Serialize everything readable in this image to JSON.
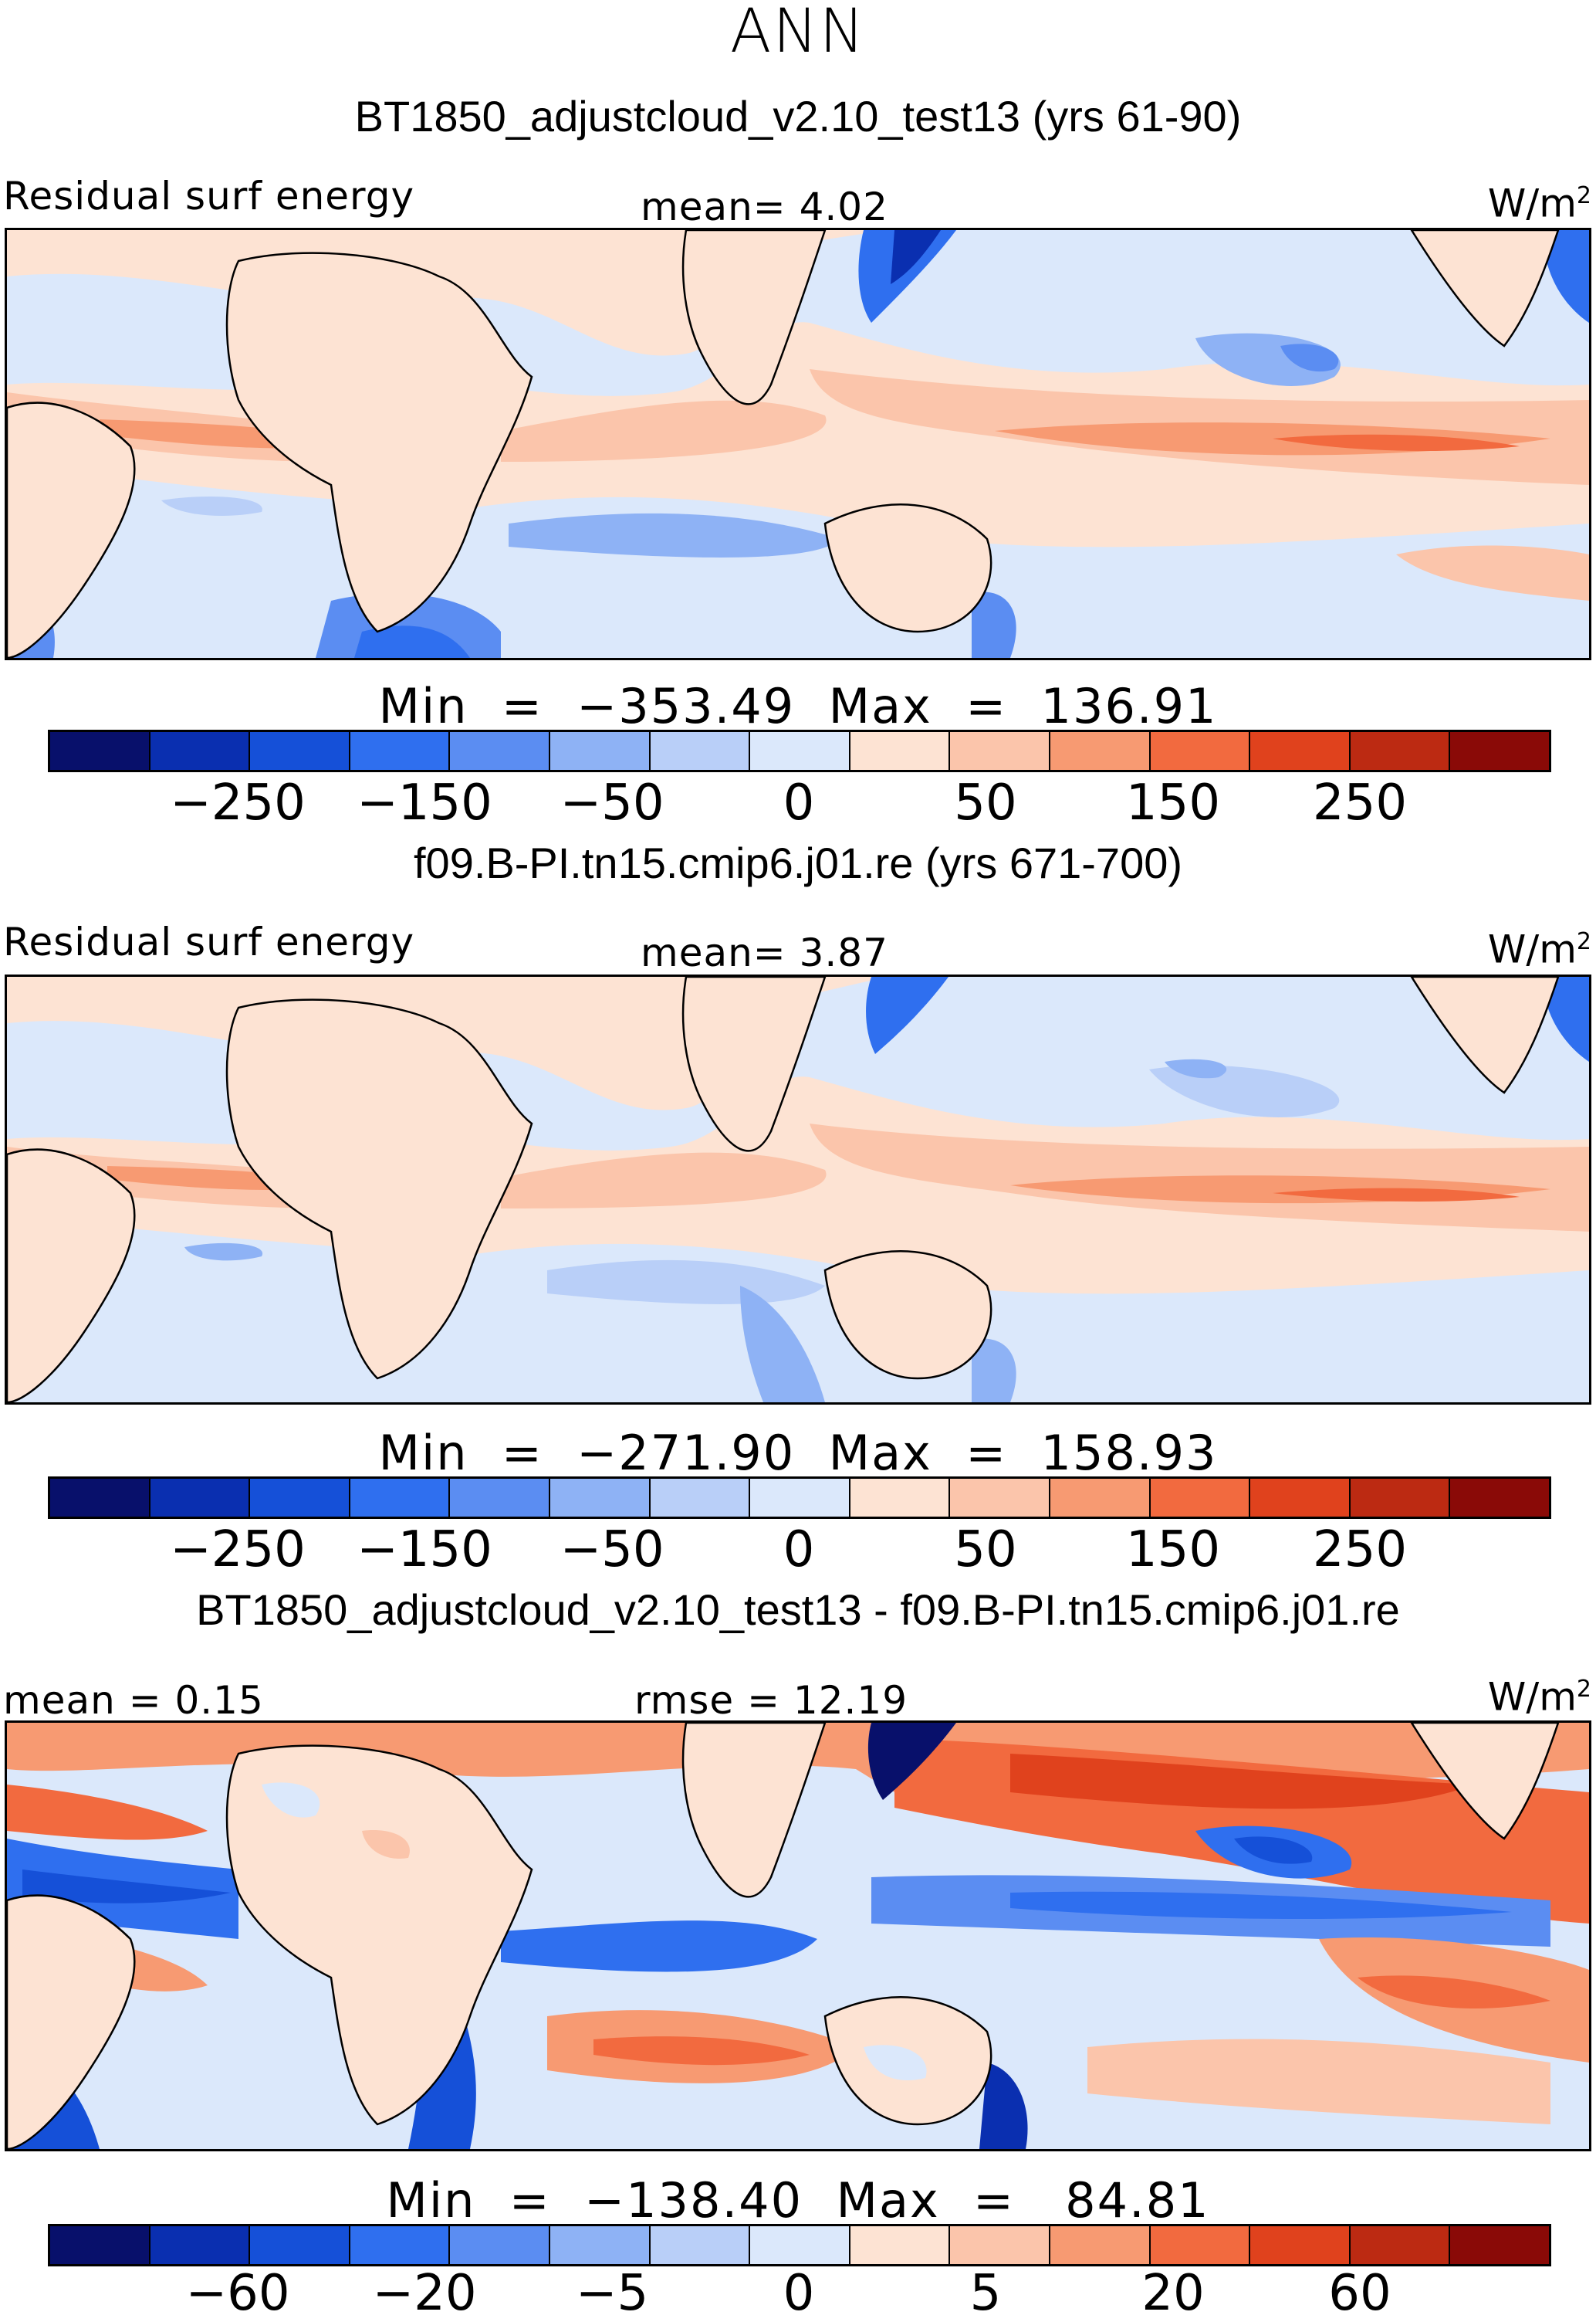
{
  "page": {
    "season": "ANN"
  },
  "units": {
    "base": "W/m",
    "exp": "2"
  },
  "colors": {
    "levels15": [
      "#08106b",
      "#0a2fb0",
      "#1550d8",
      "#2f6fef",
      "#5b8df2",
      "#8eb2f5",
      "#b9cff8",
      "#dbe8fb",
      "#fde3d3",
      "#fbc5ab",
      "#f79a72",
      "#f26a3f",
      "#e0421d",
      "#bc2a12",
      "#8a0a07"
    ]
  },
  "panels": [
    {
      "title": "BT1850_adjustcloud_v2.10_test13 (yrs 61-90)",
      "left_label": "Residual surf energy",
      "center_label": "mean=   4.02",
      "minmax": "Min  =  −353.49  Max  =  136.91",
      "ticks": [
        "−250",
        "−150",
        "−50",
        "0",
        "50",
        "150",
        "250"
      ]
    },
    {
      "title": "f09.B-PI.tn15.cmip6.j01.re (yrs 671-700)",
      "left_label": "Residual surf energy",
      "center_label": "mean=   3.87",
      "minmax": "Min  =  −271.90  Max  =  158.93",
      "ticks": [
        "−250",
        "−150",
        "−50",
        "0",
        "50",
        "150",
        "250"
      ]
    },
    {
      "title": "BT1850_adjustcloud_v2.10_test13 - f09.B-PI.tn15.cmip6.j01.re",
      "left_label": "mean =    0.15",
      "center_label": "rmse  =   12.19",
      "minmax": "Min  =  −138.40  Max  =   84.81",
      "ticks": [
        "−60",
        "−20",
        "−5",
        "0",
        "5",
        "20",
        "60"
      ]
    }
  ]
}
